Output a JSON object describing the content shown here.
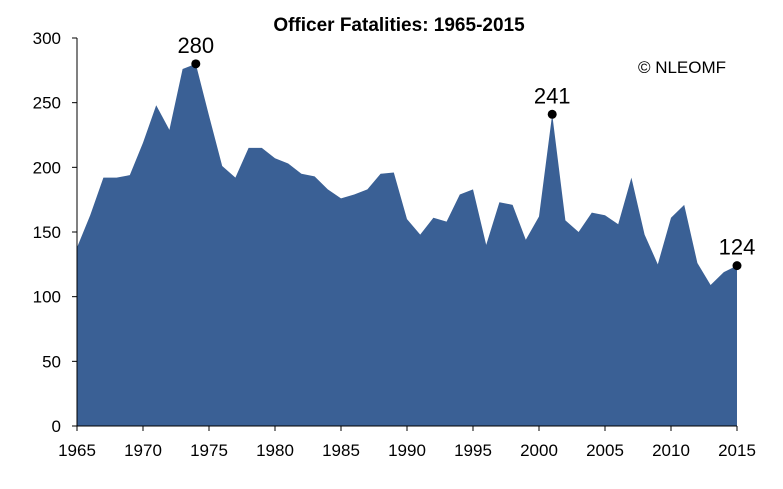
{
  "chart_data": {
    "type": "area",
    "title": "Officer Fatalities: 1965-2015",
    "credit": "© NLEOMF",
    "color": "#3a6095",
    "xlim": [
      1965,
      2015
    ],
    "ylim": [
      0,
      300
    ],
    "xticks": [
      "1965",
      "1970",
      "1975",
      "1980",
      "1985",
      "1990",
      "1995",
      "2000",
      "2005",
      "2010",
      "2015"
    ],
    "yticks": [
      "0",
      "50",
      "100",
      "150",
      "200",
      "250",
      "300"
    ],
    "x": [
      1965,
      1966,
      1967,
      1968,
      1969,
      1970,
      1971,
      1972,
      1973,
      1974,
      1975,
      1976,
      1977,
      1978,
      1979,
      1980,
      1981,
      1982,
      1983,
      1984,
      1985,
      1986,
      1987,
      1988,
      1989,
      1990,
      1991,
      1992,
      1993,
      1994,
      1995,
      1996,
      1997,
      1998,
      1999,
      2000,
      2001,
      2002,
      2003,
      2004,
      2005,
      2006,
      2007,
      2008,
      2009,
      2010,
      2011,
      2012,
      2013,
      2014,
      2015
    ],
    "values": [
      138,
      163,
      192,
      192,
      194,
      219,
      248,
      229,
      276,
      280,
      240,
      201,
      192,
      215,
      215,
      207,
      203,
      195,
      193,
      183,
      176,
      179,
      183,
      195,
      196,
      160,
      148,
      161,
      158,
      179,
      183,
      140,
      173,
      171,
      144,
      162,
      241,
      159,
      150,
      165,
      163,
      156,
      192,
      148,
      125,
      161,
      171,
      126,
      109,
      119,
      124
    ],
    "annotations": [
      {
        "x": 1974,
        "y": 280,
        "label": "280"
      },
      {
        "x": 2001,
        "y": 241,
        "label": "241"
      },
      {
        "x": 2015,
        "y": 124,
        "label": "124"
      }
    ]
  }
}
